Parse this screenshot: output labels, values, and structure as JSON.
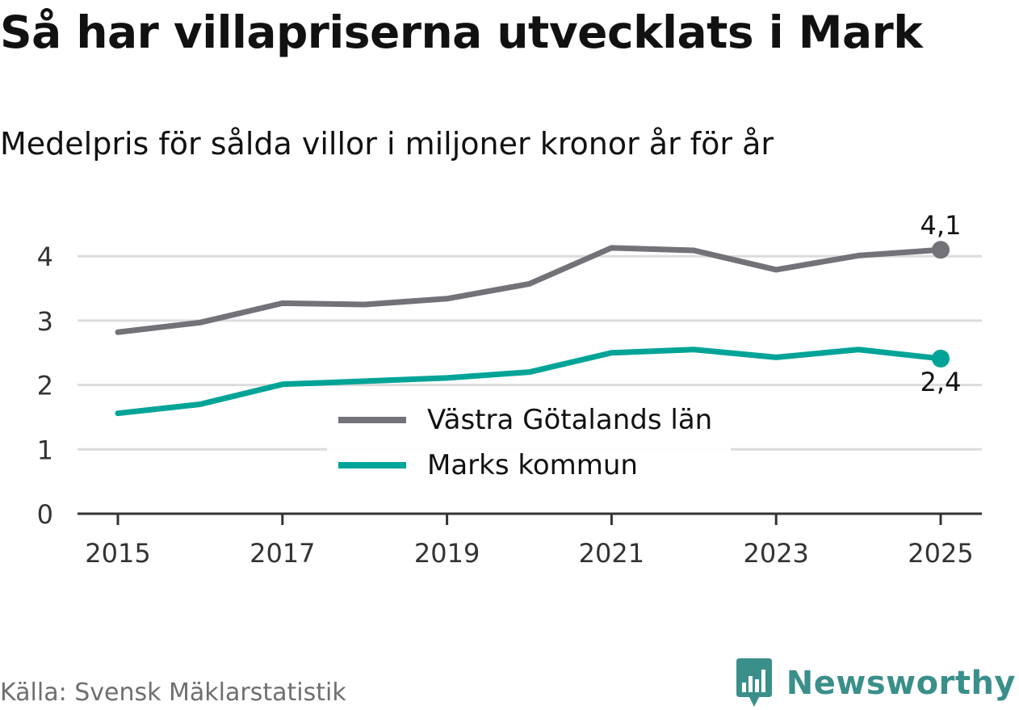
{
  "header": {
    "title": "Så har villapriserna utvecklats i Mark",
    "subtitle": "Medelpris för sålda villor i miljoner kronor år för år"
  },
  "footer": {
    "source": "Källa: Svensk Mäklarstatistik",
    "brand": "Newsworthy"
  },
  "colors": {
    "series_vg": "#737278",
    "series_mark": "#00a497",
    "grid": "#dcdcdc",
    "axis": "#333333",
    "brand": "#3a8f8a"
  },
  "chart_data": {
    "type": "line",
    "title": "Så har villapriserna utvecklats i Mark",
    "subtitle": "Medelpris för sålda villor i miljoner kronor år för år",
    "xlabel": "",
    "ylabel": "",
    "x": [
      2015,
      2016,
      2017,
      2018,
      2019,
      2020,
      2021,
      2022,
      2023,
      2024,
      2025
    ],
    "xticks": [
      "2015",
      "2017",
      "2019",
      "2021",
      "2023",
      "2025"
    ],
    "ylim": [
      0,
      4.5
    ],
    "yticks": [
      "0",
      "1",
      "2",
      "3",
      "4"
    ],
    "grid": true,
    "legend_position": "center",
    "series": [
      {
        "name": "Västra Götalands län",
        "color": "#737278",
        "values": [
          2.82,
          2.97,
          3.27,
          3.25,
          3.34,
          3.57,
          4.13,
          4.09,
          3.79,
          4.01,
          4.1
        ],
        "end_label": "4,1"
      },
      {
        "name": "Marks kommun",
        "color": "#00a497",
        "values": [
          1.56,
          1.7,
          2.01,
          2.06,
          2.11,
          2.2,
          2.5,
          2.55,
          2.43,
          2.55,
          2.41
        ],
        "end_label": "2,4"
      }
    ]
  }
}
